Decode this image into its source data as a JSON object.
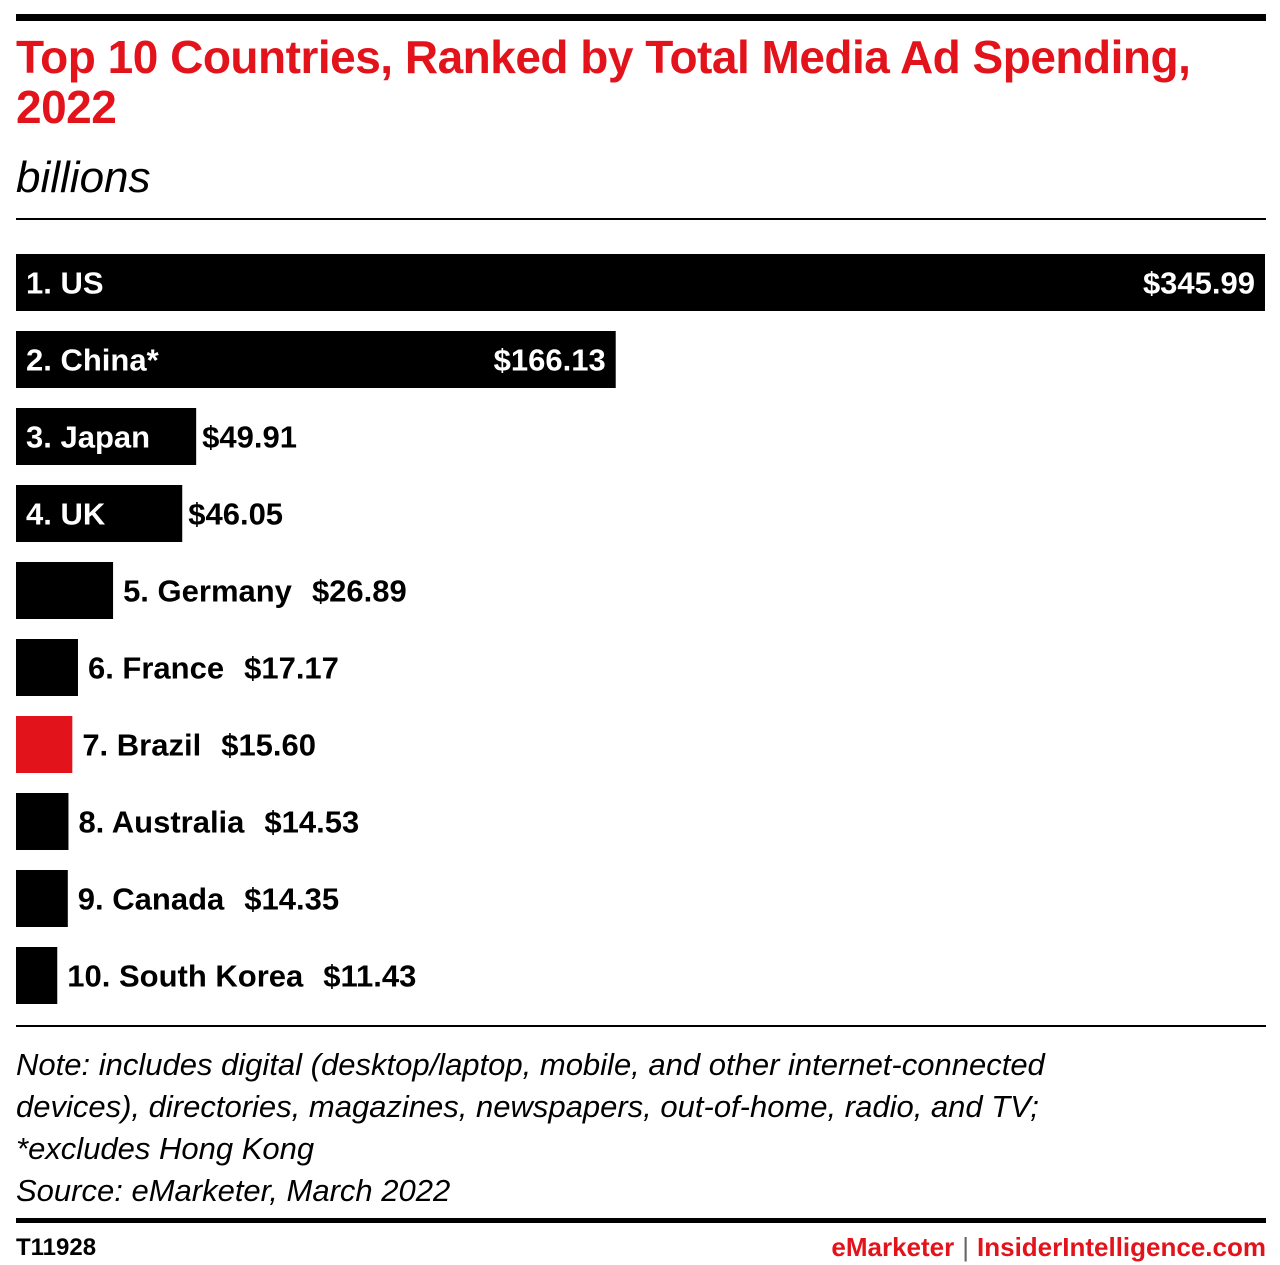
{
  "title": "Top 10 Countries, Ranked by Total Media Ad Spending, 2022",
  "subtitle": "billions",
  "colors": {
    "bar": "#000000",
    "highlight": "#e3131b",
    "label_inside": "#ffffff",
    "label_outside": "#000000"
  },
  "chart_data": {
    "type": "bar",
    "orientation": "horizontal",
    "title": "Top 10 Countries, Ranked by Total Media Ad Spending, 2022",
    "subtitle": "billions",
    "categories": [
      "1. US",
      "2. China*",
      "3. Japan",
      "4. UK",
      "5. Germany",
      "6. France",
      "7. Brazil",
      "8. Australia",
      "9. Canada",
      "10. South Korea"
    ],
    "values": [
      345.99,
      166.13,
      49.91,
      46.05,
      26.89,
      17.17,
      15.6,
      14.53,
      14.35,
      11.43
    ],
    "value_labels": [
      "$345.99",
      "$166.13",
      "$49.91",
      "$46.05",
      "$26.89",
      "$17.17",
      "$15.60",
      "$14.53",
      "$14.35",
      "$11.43"
    ],
    "highlight_index": 6,
    "xlim": [
      0,
      345.99
    ],
    "grid": false,
    "legend": "none"
  },
  "note": [
    "Note: includes digital (desktop/laptop, mobile, and other internet-connected",
    "devices), directories, magazines, newspapers, out-of-home, radio, and TV;",
    "*excludes Hong Kong",
    "Source: eMarketer, March 2022"
  ],
  "footer": {
    "id": "T11928",
    "brand_left": "eMarketer",
    "separator": "|",
    "brand_right": "InsiderIntelligence.com"
  }
}
